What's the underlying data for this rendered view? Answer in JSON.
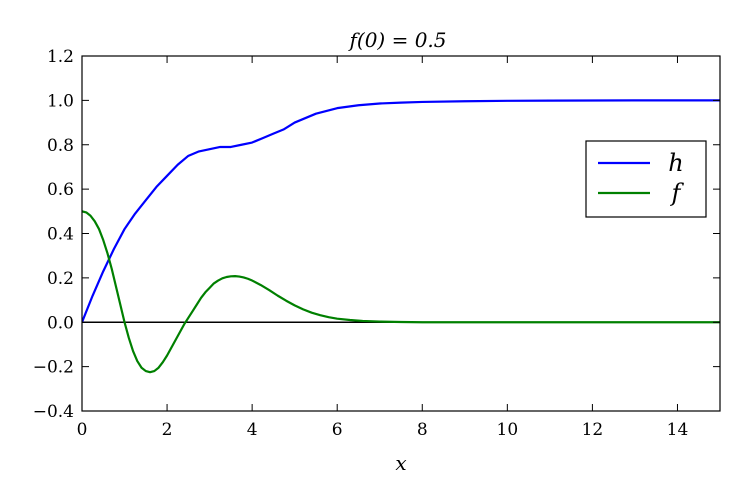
{
  "chart_data": {
    "type": "line",
    "title": "f(0) = 0.5",
    "xlabel": "x",
    "ylabel": "",
    "xlim": [
      0,
      15
    ],
    "ylim": [
      -0.4,
      1.2
    ],
    "x_ticks": [
      0,
      2,
      4,
      6,
      8,
      10,
      12,
      14
    ],
    "x_tick_labels": [
      "0",
      "2",
      "4",
      "6",
      "8",
      "10",
      "12",
      "14"
    ],
    "y_ticks": [
      -0.4,
      -0.2,
      0.0,
      0.2,
      0.4,
      0.6,
      0.8,
      1.0,
      1.2
    ],
    "y_tick_labels": [
      "−0.4",
      "−0.2",
      "0.0",
      "0.2",
      "0.4",
      "0.6",
      "0.8",
      "1.0",
      "1.2"
    ],
    "grid": false,
    "legend_position": "right",
    "reference_lines": [
      {
        "y": 0.0,
        "color": "#000000"
      }
    ],
    "series": [
      {
        "name": "h",
        "color": "#0000ff",
        "x": [
          0,
          0.25,
          0.5,
          0.75,
          1.0,
          1.25,
          1.5,
          1.75,
          2.0,
          2.25,
          2.5,
          2.75,
          3.0,
          3.25,
          3.5,
          3.75,
          4.0,
          4.25,
          4.5,
          4.75,
          5.0,
          5.5,
          6.0,
          6.5,
          7.0,
          7.5,
          8.0,
          9.0,
          10.0,
          11.0,
          12.0,
          13.0,
          14.0,
          15.0
        ],
        "values": [
          0.0,
          0.12,
          0.23,
          0.33,
          0.42,
          0.49,
          0.55,
          0.61,
          0.66,
          0.71,
          0.75,
          0.77,
          0.78,
          0.79,
          0.79,
          0.8,
          0.81,
          0.83,
          0.85,
          0.87,
          0.9,
          0.94,
          0.965,
          0.978,
          0.986,
          0.99,
          0.993,
          0.996,
          0.998,
          0.999,
          0.9995,
          1.0,
          1.0,
          1.0
        ]
      },
      {
        "name": "f",
        "color": "#008000",
        "x": [
          0,
          0.1,
          0.2,
          0.3,
          0.4,
          0.5,
          0.6,
          0.7,
          0.8,
          0.9,
          1.0,
          1.1,
          1.2,
          1.3,
          1.4,
          1.5,
          1.6,
          1.7,
          1.8,
          1.9,
          2.0,
          2.1,
          2.2,
          2.3,
          2.4,
          2.5,
          2.6,
          2.7,
          2.8,
          2.9,
          3.0,
          3.1,
          3.2,
          3.3,
          3.4,
          3.5,
          3.6,
          3.7,
          3.8,
          3.9,
          4.0,
          4.2,
          4.4,
          4.6,
          4.8,
          5.0,
          5.2,
          5.4,
          5.6,
          5.8,
          6.0,
          6.3,
          6.6,
          7.0,
          7.5,
          8.0,
          9.0,
          10.0,
          11.0,
          12.0,
          13.0,
          14.0,
          15.0
        ],
        "values": [
          0.5,
          0.495,
          0.48,
          0.455,
          0.42,
          0.37,
          0.31,
          0.24,
          0.16,
          0.08,
          0.0,
          -0.07,
          -0.13,
          -0.175,
          -0.205,
          -0.22,
          -0.225,
          -0.22,
          -0.205,
          -0.18,
          -0.15,
          -0.115,
          -0.08,
          -0.045,
          -0.01,
          0.02,
          0.05,
          0.08,
          0.11,
          0.135,
          0.155,
          0.175,
          0.188,
          0.198,
          0.204,
          0.207,
          0.208,
          0.206,
          0.202,
          0.196,
          0.188,
          0.168,
          0.145,
          0.12,
          0.097,
          0.076,
          0.058,
          0.043,
          0.032,
          0.023,
          0.016,
          0.01,
          0.006,
          0.003,
          0.001,
          0.0,
          0.0,
          0.0,
          0.0,
          0.0,
          0.0,
          0.0,
          0.0
        ]
      }
    ]
  }
}
